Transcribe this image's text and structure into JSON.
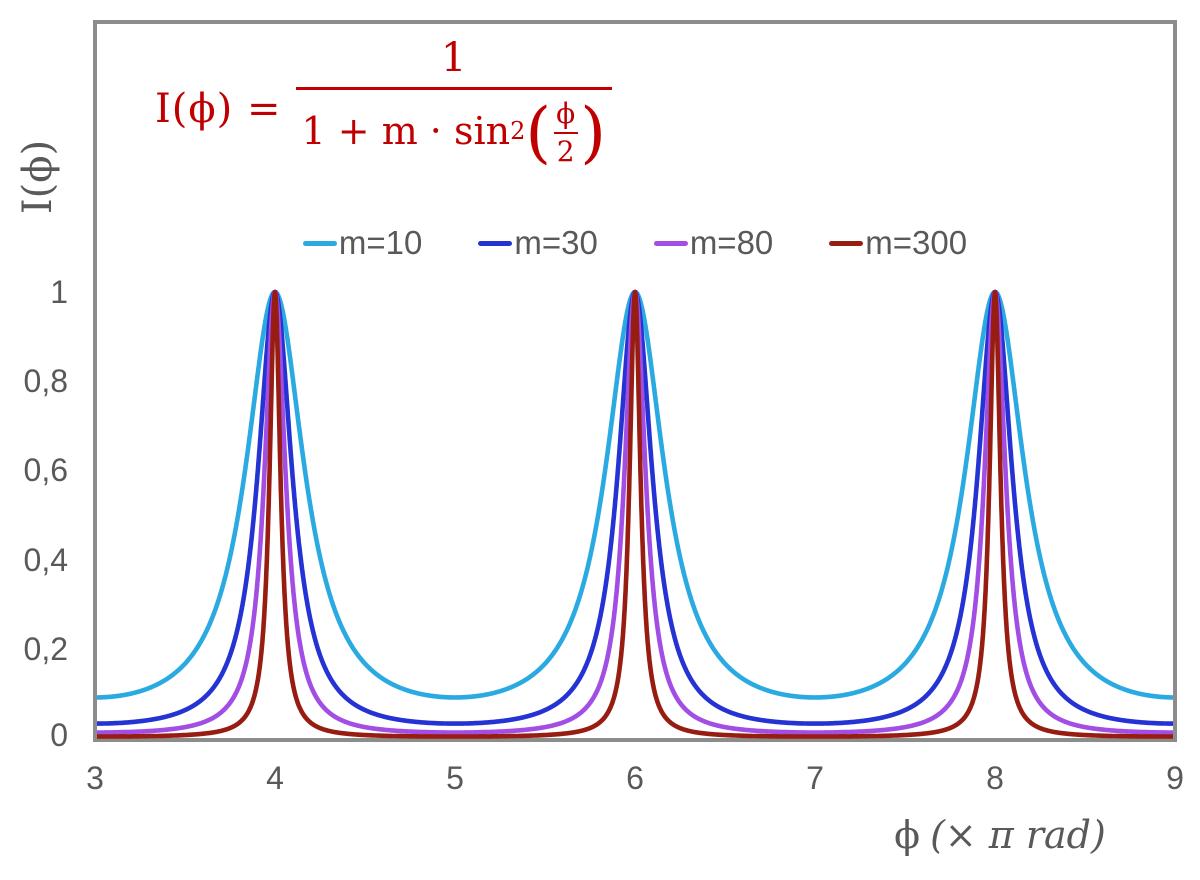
{
  "figure": {
    "background": "#FFFFFF",
    "plot_border_color": "#8C8C8C",
    "text_color": "#595959"
  },
  "formula": {
    "lhs": "I(ϕ) =",
    "numerator": "1",
    "den_prefix": "1 + m · sin",
    "den_sup": "2",
    "paren_open": "(",
    "inner_num": "ϕ",
    "inner_den": "2",
    "paren_close": ")",
    "color": "#C00000"
  },
  "legend": {
    "items": [
      {
        "label": "m=10",
        "color": "#2BAAE2"
      },
      {
        "label": "m=30",
        "color": "#2533D4"
      },
      {
        "label": "m=80",
        "color": "#A24EE4"
      },
      {
        "label": "m=300",
        "color": "#971D12"
      }
    ]
  },
  "axes": {
    "y_title": "I(ϕ)",
    "x_title_symbol": "ϕ",
    "x_title_units": "(× π rad)",
    "y_tick_labels": [
      "1",
      "0,8",
      "0,6",
      "0,4",
      "0,2",
      "0"
    ],
    "x_tick_labels": [
      "3",
      "4",
      "5",
      "6",
      "7",
      "8",
      "9"
    ]
  },
  "chart_data": {
    "type": "line",
    "title": "",
    "xlabel": "ϕ (× π rad)",
    "ylabel": "I(ϕ)",
    "function": "I(phi) = 1 / (1 + m · sin²(phi/2)), phi in units of π rad",
    "xlim": [
      3,
      9
    ],
    "ylim": [
      0,
      1.6
    ],
    "x_ticks": [
      3,
      4,
      5,
      6,
      7,
      8,
      9
    ],
    "y_ticks": [
      0,
      0.2,
      0.4,
      0.6,
      0.8,
      1
    ],
    "grid": false,
    "legend_position": "top-center",
    "peaks_at_x": [
      4,
      6,
      8
    ],
    "peak_value": 1,
    "minima_at_x": [
      3,
      5,
      7,
      9
    ],
    "sample_x": [
      3,
      3.25,
      3.5,
      3.75,
      4,
      4.25,
      4.5,
      4.75,
      5,
      5.25,
      5.5,
      5.75,
      6,
      6.25,
      6.5,
      6.75,
      7,
      7.25,
      7.5,
      7.75,
      8,
      8.25,
      8.5,
      8.75,
      9
    ],
    "series": [
      {
        "name": "m=10",
        "m": 10,
        "color": "#2BAAE2",
        "min_value": 0.0909,
        "values": [
          0.091,
          0.105,
          0.167,
          0.406,
          1,
          0.406,
          0.167,
          0.105,
          0.091,
          0.105,
          0.167,
          0.406,
          1,
          0.406,
          0.167,
          0.105,
          0.091,
          0.105,
          0.167,
          0.406,
          1,
          0.406,
          0.167,
          0.105,
          0.091
        ]
      },
      {
        "name": "m=30",
        "m": 30,
        "color": "#2533D4",
        "min_value": 0.0323,
        "values": [
          0.032,
          0.038,
          0.063,
          0.185,
          1,
          0.185,
          0.063,
          0.038,
          0.032,
          0.038,
          0.063,
          0.185,
          1,
          0.185,
          0.063,
          0.038,
          0.032,
          0.038,
          0.063,
          0.185,
          1,
          0.185,
          0.063,
          0.038,
          0.032
        ]
      },
      {
        "name": "m=80",
        "m": 80,
        "color": "#A24EE4",
        "min_value": 0.0123,
        "values": [
          0.012,
          0.014,
          0.024,
          0.079,
          1,
          0.079,
          0.024,
          0.014,
          0.012,
          0.014,
          0.024,
          0.079,
          1,
          0.079,
          0.024,
          0.014,
          0.012,
          0.014,
          0.024,
          0.079,
          1,
          0.079,
          0.024,
          0.014,
          0.012
        ]
      },
      {
        "name": "m=300",
        "m": 300,
        "color": "#971D12",
        "min_value": 0.0033,
        "values": [
          0.003,
          0.004,
          0.007,
          0.022,
          1,
          0.022,
          0.007,
          0.004,
          0.003,
          0.004,
          0.007,
          0.022,
          1,
          0.022,
          0.007,
          0.004,
          0.003,
          0.004,
          0.007,
          0.022,
          1,
          0.022,
          0.007,
          0.004,
          0.003
        ]
      }
    ]
  }
}
